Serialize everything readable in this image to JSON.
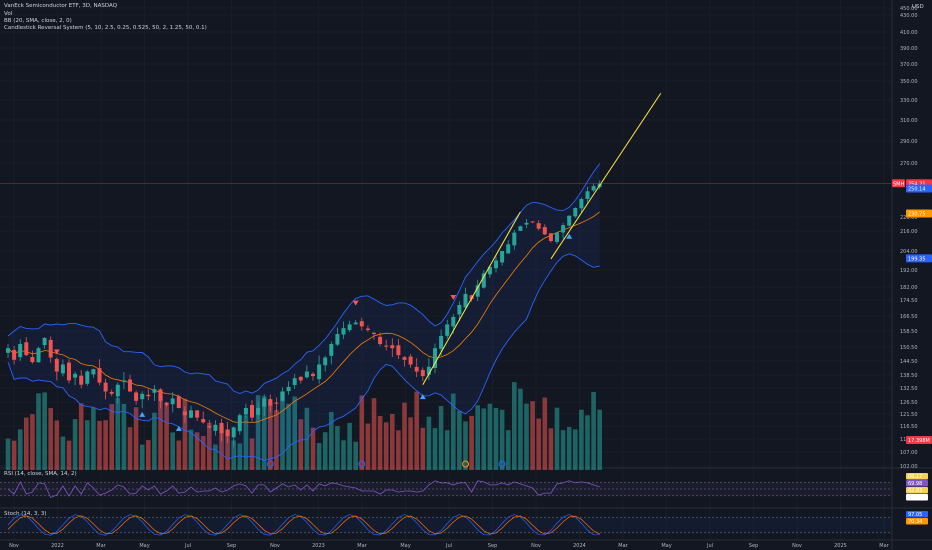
{
  "header": {
    "symbol_line": "VanEck Semiconductor ETF, 3D, NASDAQ",
    "volume_line": "Vol",
    "bb_line": "BB (20, SMA, close, 2, 0)",
    "indicator_line": "Candlestick Reversal System (5, 10, 2.5, 0.25, 0.525, 50, 2, 1.25, 50, 0.1)",
    "rsi_line": "RSI (14, close, SMA, 14, 2)",
    "stoch_line": "Stoch (14, 3, 3)"
  },
  "colors": {
    "background": "#131722",
    "up": "#26a69a",
    "down": "#ef5350",
    "bb_band": "#2962ff",
    "bb_basis": "#f57c00",
    "trendline": "#ffeb3b",
    "rsi": "#7e57c2",
    "stoch_k": "#2962ff",
    "stoch_d": "#ff6d00"
  },
  "currency": "USD",
  "chart_data": {
    "type": "candlestick",
    "x_tick_labels": [
      "Nov",
      "2022",
      "Mar",
      "May",
      "Jul",
      "Sep",
      "Nov",
      "2023",
      "Mar",
      "May",
      "Jul",
      "Sep",
      "Nov",
      "2024",
      "Mar",
      "May",
      "Jul",
      "Sep",
      "Nov",
      "2025",
      "Mar"
    ],
    "y_tick_labels": [
      "450.00",
      "430.00",
      "410.00",
      "390.00",
      "370.00",
      "350.00",
      "330.00",
      "310.00",
      "290.00",
      "270.00",
      "228.00",
      "216.00",
      "204.00",
      "192.00",
      "182.00",
      "174.50",
      "166.50",
      "158.50",
      "150.50",
      "144.50",
      "138.50",
      "132.50",
      "126.50",
      "121.50",
      "116.50",
      "112.00",
      "107.00",
      "102.00"
    ],
    "y_tick_values": [
      450,
      430,
      410,
      390,
      370,
      350,
      330,
      310,
      290,
      270,
      228,
      216,
      204,
      192,
      182,
      174.5,
      166.5,
      158.5,
      150.5,
      144.5,
      138.5,
      132.5,
      126.5,
      121.5,
      116.5,
      112,
      107,
      102
    ],
    "price_tags": [
      {
        "label": "SMH",
        "value": "254.21",
        "sub": "05:10:11",
        "color": "#f23645"
      },
      {
        "label": "",
        "value": "250.14",
        "color": "#2962ff"
      },
      {
        "label": "",
        "value": "230.75",
        "color": "#ff9800"
      },
      {
        "label": "",
        "value": "199.35",
        "color": "#2962ff"
      },
      {
        "label": "",
        "value": "17.398M",
        "color": "#f23645"
      }
    ],
    "close_series": [
      150,
      145,
      152,
      147,
      144,
      150,
      155,
      146,
      140,
      143,
      136,
      139,
      134,
      140,
      141,
      135,
      131,
      130,
      134,
      136,
      131,
      127,
      130,
      129,
      132,
      127,
      125,
      128,
      124,
      121,
      123,
      120,
      118,
      116,
      117,
      114,
      113,
      116,
      121,
      124,
      120,
      124,
      128,
      125,
      126,
      131,
      133,
      137,
      136,
      140,
      138,
      143,
      146,
      152,
      157,
      160,
      162,
      163,
      161,
      159,
      157,
      152,
      151,
      150,
      147,
      145,
      143,
      140,
      138,
      142,
      150,
      156,
      162,
      166,
      172,
      178,
      175,
      183,
      190,
      194,
      198,
      204,
      208,
      215,
      220,
      223,
      224,
      218,
      214,
      210,
      215,
      221,
      229,
      235,
      242,
      248,
      252,
      254
    ],
    "volume_scale": {
      "min": 0,
      "max": 30
    },
    "reversal_markers": [
      {
        "type": "sell",
        "index": 8
      },
      {
        "type": "buy",
        "index": 22
      },
      {
        "type": "buy",
        "index": 28
      },
      {
        "type": "sell",
        "index": 57
      },
      {
        "type": "buy",
        "index": 68
      },
      {
        "type": "sell",
        "index": 73
      },
      {
        "type": "buy",
        "index": 92
      }
    ],
    "earnings_markers": [
      43,
      58,
      81
    ],
    "dividend_markers": [
      75
    ],
    "trendlines": [
      {
        "from": {
          "index": 68,
          "price": 134
        },
        "to": {
          "index": 84,
          "price": 232
        }
      },
      {
        "from": {
          "index": 89,
          "price": 199
        },
        "to": {
          "index": 107,
          "price": 337
        }
      }
    ],
    "rsi": {
      "levels": [
        70,
        50,
        30
      ],
      "tags": [
        "66.17",
        "69.98",
        "62.83",
        "51.92"
      ]
    },
    "stoch": {
      "levels": [
        80,
        20
      ],
      "tags": [
        "97.05",
        "70.34"
      ]
    }
  }
}
